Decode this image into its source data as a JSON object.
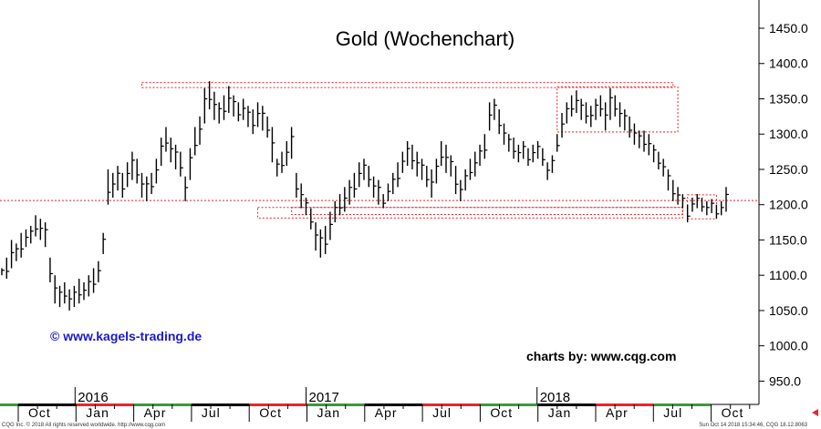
{
  "chart_data": {
    "type": "ohlc",
    "title": "Gold (Wochenchart)",
    "watermark": "© www.kagels-trading.de",
    "credit": "charts by: www.cqg.com",
    "footer_left": "CQG Inc. © 2018 All rights reserved worldwide. http://www.cqg.com",
    "footer_right": "Sun Oct 14 2018 15:34:46, CQG 18.12.8063",
    "ylim": [
      917,
      1490
    ],
    "y_ticks": [
      950,
      1000,
      1050,
      1100,
      1150,
      1200,
      1250,
      1300,
      1350,
      1400,
      1450
    ],
    "y_tick_labels": [
      "950.0",
      "1000.0",
      "1050.0",
      "1100.0",
      "1150.0",
      "1200.0",
      "1250.0",
      "1300.0",
      "1350.0",
      "1400.0",
      "1450.0"
    ],
    "month_labels": [
      "Oct",
      "Jan",
      "Apr",
      "Jul",
      "Oct",
      "Jan",
      "Apr",
      "Jul",
      "Oct",
      "Jan",
      "Apr",
      "Jul",
      "Oct"
    ],
    "year_labels": [
      {
        "label": "2016",
        "month_index": 1
      },
      {
        "label": "2017",
        "month_index": 5
      },
      {
        "label": "2018",
        "month_index": 9
      }
    ],
    "grid": false,
    "colors": {
      "bars": "#000000",
      "annotation": "#e8262b",
      "accent_green": "#3a9a3a",
      "watermark": "#1a1acc"
    },
    "weeks": [
      [
        1110,
        1100
      ],
      [
        1125,
        1095
      ],
      [
        1150,
        1110
      ],
      [
        1145,
        1120
      ],
      [
        1160,
        1125
      ],
      [
        1165,
        1140
      ],
      [
        1170,
        1145
      ],
      [
        1185,
        1155
      ],
      [
        1180,
        1150
      ],
      [
        1175,
        1140
      ],
      [
        1125,
        1090
      ],
      [
        1100,
        1060
      ],
      [
        1085,
        1055
      ],
      [
        1090,
        1060
      ],
      [
        1080,
        1050
      ],
      [
        1085,
        1055
      ],
      [
        1095,
        1060
      ],
      [
        1090,
        1065
      ],
      [
        1100,
        1070
      ],
      [
        1110,
        1075
      ],
      [
        1120,
        1090
      ],
      [
        1160,
        1130
      ],
      [
        1250,
        1200
      ],
      [
        1245,
        1210
      ],
      [
        1255,
        1220
      ],
      [
        1245,
        1210
      ],
      [
        1260,
        1225
      ],
      [
        1275,
        1235
      ],
      [
        1265,
        1230
      ],
      [
        1245,
        1210
      ],
      [
        1240,
        1205
      ],
      [
        1245,
        1215
      ],
      [
        1265,
        1230
      ],
      [
        1295,
        1255
      ],
      [
        1310,
        1275
      ],
      [
        1295,
        1260
      ],
      [
        1285,
        1250
      ],
      [
        1275,
        1240
      ],
      [
        1240,
        1205
      ],
      [
        1280,
        1235
      ],
      [
        1310,
        1270
      ],
      [
        1325,
        1285
      ],
      [
        1365,
        1315
      ],
      [
        1375,
        1335
      ],
      [
        1360,
        1320
      ],
      [
        1345,
        1315
      ],
      [
        1355,
        1320
      ],
      [
        1368,
        1330
      ],
      [
        1355,
        1325
      ],
      [
        1345,
        1318
      ],
      [
        1350,
        1320
      ],
      [
        1340,
        1310
      ],
      [
        1335,
        1300
      ],
      [
        1345,
        1310
      ],
      [
        1340,
        1305
      ],
      [
        1325,
        1295
      ],
      [
        1310,
        1260
      ],
      [
        1265,
        1240
      ],
      [
        1275,
        1245
      ],
      [
        1290,
        1255
      ],
      [
        1310,
        1265
      ],
      [
        1245,
        1210
      ],
      [
        1230,
        1195
      ],
      [
        1210,
        1185
      ],
      [
        1195,
        1165
      ],
      [
        1175,
        1135
      ],
      [
        1165,
        1125
      ],
      [
        1170,
        1130
      ],
      [
        1190,
        1150
      ],
      [
        1205,
        1175
      ],
      [
        1215,
        1185
      ],
      [
        1225,
        1190
      ],
      [
        1235,
        1200
      ],
      [
        1245,
        1210
      ],
      [
        1260,
        1225
      ],
      [
        1265,
        1235
      ],
      [
        1255,
        1225
      ],
      [
        1240,
        1210
      ],
      [
        1235,
        1200
      ],
      [
        1215,
        1195
      ],
      [
        1230,
        1205
      ],
      [
        1245,
        1215
      ],
      [
        1260,
        1225
      ],
      [
        1275,
        1245
      ],
      [
        1290,
        1255
      ],
      [
        1285,
        1250
      ],
      [
        1275,
        1240
      ],
      [
        1265,
        1235
      ],
      [
        1255,
        1225
      ],
      [
        1250,
        1210
      ],
      [
        1265,
        1230
      ],
      [
        1290,
        1255
      ],
      [
        1285,
        1245
      ],
      [
        1270,
        1240
      ],
      [
        1255,
        1215
      ],
      [
        1235,
        1205
      ],
      [
        1250,
        1220
      ],
      [
        1265,
        1235
      ],
      [
        1275,
        1240
      ],
      [
        1285,
        1255
      ],
      [
        1300,
        1265
      ],
      [
        1345,
        1305
      ],
      [
        1350,
        1320
      ],
      [
        1335,
        1300
      ],
      [
        1315,
        1285
      ],
      [
        1300,
        1275
      ],
      [
        1295,
        1265
      ],
      [
        1285,
        1260
      ],
      [
        1290,
        1265
      ],
      [
        1280,
        1255
      ],
      [
        1285,
        1260
      ],
      [
        1290,
        1265
      ],
      [
        1280,
        1255
      ],
      [
        1260,
        1235
      ],
      [
        1270,
        1245
      ],
      [
        1300,
        1275
      ],
      [
        1330,
        1295
      ],
      [
        1345,
        1315
      ],
      [
        1355,
        1325
      ],
      [
        1362,
        1330
      ],
      [
        1350,
        1320
      ],
      [
        1345,
        1315
      ],
      [
        1340,
        1310
      ],
      [
        1350,
        1320
      ],
      [
        1355,
        1325
      ],
      [
        1345,
        1305
      ],
      [
        1365,
        1320
      ],
      [
        1355,
        1325
      ],
      [
        1345,
        1310
      ],
      [
        1335,
        1305
      ],
      [
        1325,
        1295
      ],
      [
        1315,
        1285
      ],
      [
        1305,
        1280
      ],
      [
        1305,
        1275
      ],
      [
        1300,
        1270
      ],
      [
        1285,
        1260
      ],
      [
        1275,
        1250
      ],
      [
        1265,
        1240
      ],
      [
        1250,
        1220
      ],
      [
        1235,
        1205
      ],
      [
        1225,
        1200
      ],
      [
        1215,
        1195
      ],
      [
        1200,
        1175
      ],
      [
        1210,
        1190
      ],
      [
        1215,
        1195
      ],
      [
        1210,
        1190
      ],
      [
        1205,
        1185
      ],
      [
        1208,
        1188
      ],
      [
        1200,
        1180
      ],
      [
        1205,
        1185
      ],
      [
        1225,
        1190
      ]
    ],
    "annotations": [
      {
        "type": "hline",
        "value": 1206
      },
      {
        "type": "box",
        "label": "range-top-left",
        "x": [
          29,
          139
        ],
        "y": [
          1366,
          1373
        ]
      },
      {
        "type": "box",
        "label": "range-top-right",
        "x": [
          115,
          140
        ],
        "y": [
          1303,
          1367
        ]
      },
      {
        "type": "box",
        "label": "support-long",
        "x": [
          53,
          141
        ],
        "y": [
          1181,
          1196
        ]
      },
      {
        "type": "box",
        "label": "support-short",
        "x": [
          60,
          141
        ],
        "y": [
          1186,
          1196
        ]
      },
      {
        "type": "box",
        "label": "support-right",
        "x": [
          142,
          148
        ],
        "y": [
          1180,
          1214
        ]
      }
    ]
  }
}
